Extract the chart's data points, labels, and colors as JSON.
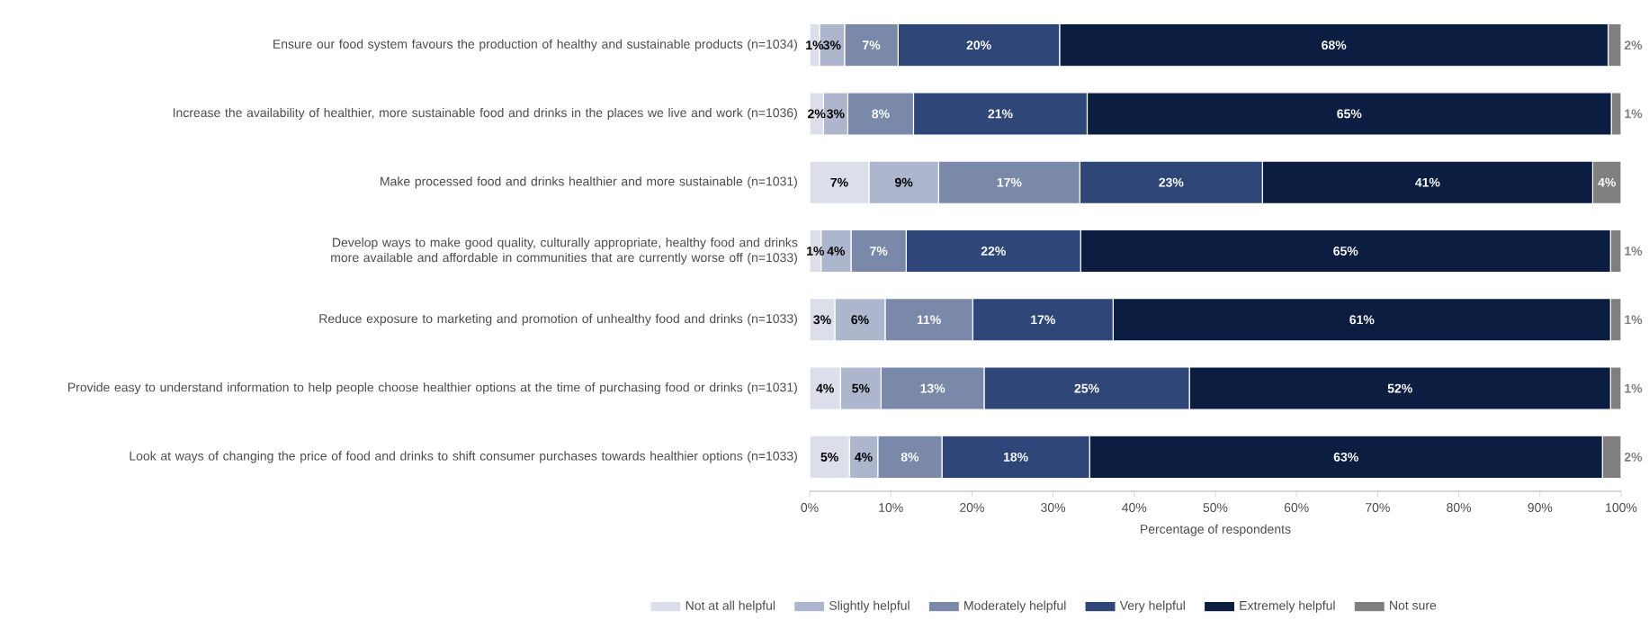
{
  "chart_data": {
    "type": "bar",
    "orientation": "horizontal",
    "stacked": true,
    "xlabel": "Percentage of respondents",
    "categories": [
      "Ensure our food system favours the production of healthy and sustainable products (n=1034)",
      "Increase the availability of healthier, more sustainable food and drinks in the places we live and work (n=1036)",
      "Make processed food and drinks healthier and more sustainable (n=1031)",
      "Develop ways to make good quality, culturally appropriate, healthy food and drinks more available and affordable in communities that are currently worse off (n=1033)",
      "Reduce exposure to marketing and promotion of unhealthy food and drinks (n=1033)",
      "Provide easy to understand information to help people choose healthier options at the time of purchasing food or drinks (n=1031)",
      "Look at ways of changing the price of food and drinks to shift consumer purchases towards healthier options (n=1033)"
    ],
    "series": [
      {
        "name": "Not at all helpful",
        "color": "#dcdfea",
        "values": [
          1.2,
          1.7,
          7.3,
          1.4,
          3.1,
          3.8,
          4.9
        ],
        "value_labels": [
          "1%",
          "2%",
          "7%",
          "1%",
          "3%",
          "4%",
          "5%"
        ]
      },
      {
        "name": "Slightly helpful",
        "color": "#adb6cc",
        "values": [
          3.1,
          3.0,
          8.6,
          3.7,
          6.2,
          5.0,
          3.5
        ],
        "value_labels": [
          "3%",
          "3%",
          "9%",
          "4%",
          "6%",
          "5%",
          "4%"
        ]
      },
      {
        "name": "Moderately helpful",
        "color": "#7a89aa",
        "values": [
          6.6,
          8.1,
          17.4,
          6.8,
          10.8,
          12.7,
          7.9
        ],
        "value_labels": [
          "7%",
          "8%",
          "17%",
          "7%",
          "11%",
          "13%",
          "8%"
        ]
      },
      {
        "name": "Very helpful",
        "color": "#2f4778",
        "values": [
          19.9,
          21.4,
          22.5,
          21.5,
          17.3,
          25.3,
          18.2
        ],
        "value_labels": [
          "20%",
          "21%",
          "23%",
          "22%",
          "17%",
          "25%",
          "18%"
        ]
      },
      {
        "name": "Extremely helpful",
        "color": "#0b1d40",
        "values": [
          67.6,
          64.6,
          40.7,
          65.3,
          61.3,
          51.9,
          63.2
        ],
        "value_labels": [
          "68%",
          "65%",
          "41%",
          "65%",
          "61%",
          "52%",
          "63%"
        ]
      },
      {
        "name": "Not sure",
        "color": "#7f7f7f",
        "values": [
          1.6,
          1.2,
          3.5,
          1.3,
          1.3,
          1.3,
          2.3
        ],
        "value_labels": [
          "2%",
          "1%",
          "4%",
          "1%",
          "1%",
          "1%",
          "2%"
        ]
      }
    ],
    "xlim": [
      0,
      100
    ],
    "xticks": [
      {
        "value": 0,
        "label": "0%"
      },
      {
        "value": 10,
        "label": "10%"
      },
      {
        "value": 20,
        "label": "20%"
      },
      {
        "value": 30,
        "label": "30%"
      },
      {
        "value": 40,
        "label": "40%"
      },
      {
        "value": 50,
        "label": "50%"
      },
      {
        "value": 60,
        "label": "60%"
      },
      {
        "value": 70,
        "label": "70%"
      },
      {
        "value": 80,
        "label": "80%"
      },
      {
        "value": 90,
        "label": "90%"
      },
      {
        "value": 100,
        "label": "100%"
      }
    ],
    "legend": "bottom"
  }
}
